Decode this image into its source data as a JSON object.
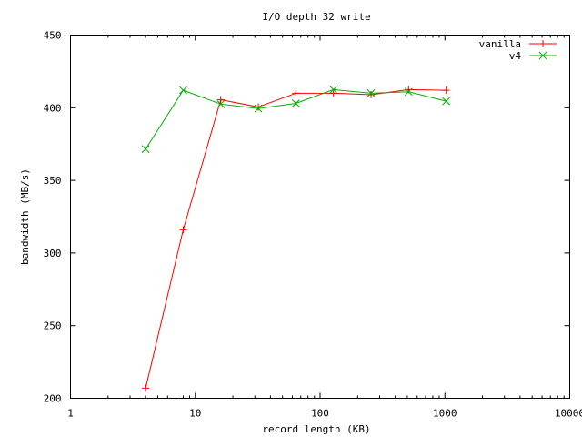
{
  "chart_data": {
    "type": "line",
    "title": "I/O depth 32 write",
    "xlabel": "record length (KB)",
    "ylabel": "bandwidth (MB/s)",
    "x_scale": "log",
    "xlim": [
      1,
      10000
    ],
    "ylim": [
      200,
      450
    ],
    "x_ticks": [
      1,
      10,
      100,
      1000,
      10000
    ],
    "x_tick_labels": [
      "1",
      "10",
      "100",
      "1000",
      "10000"
    ],
    "y_ticks": [
      200,
      250,
      300,
      350,
      400,
      450
    ],
    "y_tick_labels": [
      "200",
      "250",
      "300",
      "350",
      "400",
      "450"
    ],
    "grid": false,
    "legend_position": "top-right",
    "series": [
      {
        "name": "vanilla",
        "color": "#ff0000",
        "marker": "plus",
        "x": [
          4,
          8,
          16,
          32,
          64,
          128,
          256,
          512,
          1024
        ],
        "y": [
          207,
          316,
          405.5,
          400.5,
          410,
          410,
          409,
          412.5,
          412
        ]
      },
      {
        "name": "v4",
        "color": "#00b000",
        "marker": "cross",
        "x": [
          4,
          8,
          16,
          32,
          64,
          128,
          256,
          512,
          1024
        ],
        "y": [
          371.5,
          412,
          402.5,
          399.5,
          403,
          412.5,
          410,
          411,
          404.5
        ]
      }
    ]
  }
}
